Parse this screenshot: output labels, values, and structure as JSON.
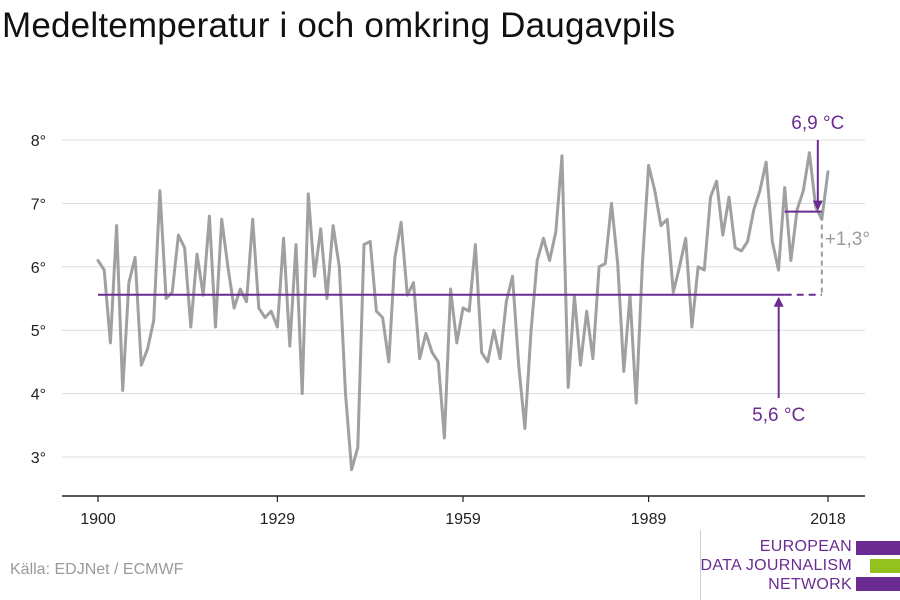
{
  "title": "Medeltemperatur i och omkring Daugavpils",
  "source": "Källa: EDJNet / ECMWF",
  "logo": {
    "lines": [
      "EUROPEAN",
      "DATA JOURNALISM",
      "NETWORK"
    ],
    "colors": [
      "#6a2c91",
      "#95c11f",
      "#6a2c91"
    ]
  },
  "chart_data": {
    "type": "line",
    "title": "Medeltemperatur i och omkring Daugavpils",
    "xlabel": "",
    "ylabel": "",
    "xlim": [
      1900,
      2018
    ],
    "ylim": [
      2.5,
      8.5
    ],
    "x_ticks": [
      1900,
      1929,
      1959,
      1989,
      2018
    ],
    "y_ticks": [
      3,
      4,
      5,
      6,
      7,
      8
    ],
    "y_tick_labels": [
      "3°",
      "4°",
      "5°",
      "6°",
      "7°",
      "8°"
    ],
    "grid": "horizontal",
    "colors": {
      "series": "#a0a0a0",
      "reference": "#6a2c91",
      "change": "#9a9a9a"
    },
    "series": [
      {
        "x": [
          1900,
          1901,
          1902,
          1903,
          1904,
          1905,
          1906,
          1907,
          1908,
          1909,
          1910,
          1911,
          1912,
          1913,
          1914,
          1915,
          1916,
          1917,
          1918,
          1919,
          1920,
          1921,
          1922,
          1923,
          1924,
          1925,
          1926,
          1927,
          1928,
          1929,
          1930,
          1931,
          1932,
          1933,
          1934,
          1935,
          1936,
          1937,
          1938,
          1939,
          1940,
          1941,
          1942,
          1943,
          1944,
          1945,
          1946,
          1947,
          1948,
          1949,
          1950,
          1951,
          1952,
          1953,
          1954,
          1955,
          1956,
          1957,
          1958,
          1959,
          1960,
          1961,
          1962,
          1963,
          1964,
          1965,
          1966,
          1967,
          1968,
          1969,
          1970,
          1971,
          1972,
          1973,
          1974,
          1975,
          1976,
          1977,
          1978,
          1979,
          1980,
          1981,
          1982,
          1983,
          1984,
          1985,
          1986,
          1987,
          1988,
          1989,
          1990,
          1991,
          1992,
          1993,
          1994,
          1995,
          1996,
          1997,
          1998,
          1999,
          2000,
          2001,
          2002,
          2003,
          2004,
          2005,
          2006,
          2007,
          2008,
          2009,
          2010,
          2011,
          2012,
          2013,
          2014,
          2015,
          2016,
          2017,
          2018
        ],
        "values": [
          6.1,
          5.95,
          4.8,
          6.65,
          4.05,
          5.75,
          6.15,
          4.45,
          4.7,
          5.15,
          7.2,
          5.5,
          5.6,
          6.5,
          6.3,
          5.05,
          6.2,
          5.55,
          6.8,
          5.05,
          6.75,
          6.0,
          5.35,
          5.65,
          5.45,
          6.75,
          5.35,
          5.2,
          5.3,
          5.05,
          6.45,
          4.75,
          6.35,
          4.0,
          7.15,
          5.85,
          6.6,
          5.5,
          6.65,
          6.0,
          4.0,
          2.8,
          3.15,
          6.35,
          6.4,
          5.3,
          5.2,
          4.5,
          6.15,
          6.7,
          5.55,
          5.75,
          4.55,
          4.95,
          4.65,
          4.5,
          3.3,
          5.65,
          4.8,
          5.35,
          5.3,
          6.35,
          4.65,
          4.5,
          5.0,
          4.55,
          5.45,
          5.85,
          4.45,
          3.45,
          5.0,
          6.1,
          6.45,
          6.1,
          6.55,
          7.75,
          4.1,
          5.55,
          4.45,
          5.3,
          4.55,
          6.0,
          6.05,
          7.0,
          6.05,
          4.35,
          5.55,
          3.85,
          6.05,
          7.6,
          7.2,
          6.65,
          6.75,
          5.6,
          6.0,
          6.45,
          5.05,
          6.0,
          5.95,
          7.1,
          7.35,
          6.5,
          7.1,
          6.3,
          6.25,
          6.4,
          6.9,
          7.2,
          7.65,
          6.4,
          5.95,
          7.25,
          6.1,
          6.9,
          7.2,
          7.8,
          6.95,
          6.75,
          7.5
        ]
      }
    ],
    "reference_lines": [
      {
        "label": "5,6 °C",
        "value": 5.56,
        "x_start": 1900,
        "x_end": 2011,
        "dashed_x_end": 2017
      },
      {
        "label": "6,9 °C",
        "value": 6.87,
        "x_start": 2011,
        "x_end": 2017
      }
    ],
    "change_label": "+1,3°"
  }
}
